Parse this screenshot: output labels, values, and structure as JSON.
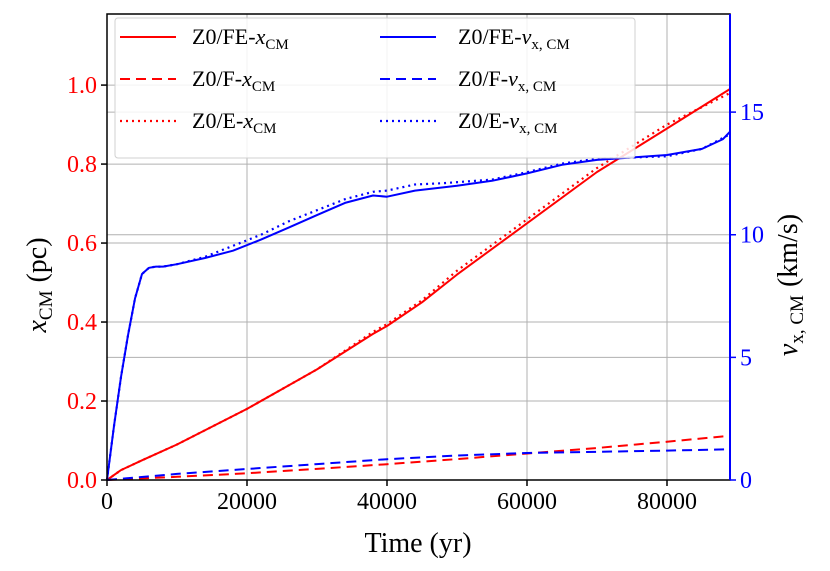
{
  "chart_data": {
    "type": "line",
    "xlabel": "Time (yr)",
    "ylabel_left_main": "x",
    "ylabel_left_sub": "CM",
    "ylabel_left_unit": "(pc)",
    "ylabel_right_main": "v",
    "ylabel_right_sub": "x, CM",
    "ylabel_right_unit": "(km/s)",
    "xlim": [
      0,
      89000
    ],
    "ylim_left": [
      0,
      1.18
    ],
    "ylim_right": [
      0,
      19.0
    ],
    "x_ticks": [
      0,
      20000,
      40000,
      60000,
      80000
    ],
    "x_tick_labels": [
      "0",
      "20000",
      "40000",
      "60000",
      "80000"
    ],
    "yleft_ticks": [
      0.0,
      0.2,
      0.4,
      0.6,
      0.8,
      1.0
    ],
    "yleft_tick_labels": [
      "0.0",
      "0.2",
      "0.4",
      "0.6",
      "0.8",
      "1.0"
    ],
    "yright_ticks": [
      0,
      5,
      10,
      15
    ],
    "yright_tick_labels": [
      "0",
      "5",
      "10",
      "15"
    ],
    "grid": true,
    "legend_position": "top",
    "colors": {
      "x_axis_series": "#ff0000",
      "v_axis_series": "#0000ff",
      "frame": "#000000"
    },
    "series": [
      {
        "name": "Z0/FE-x",
        "name_sub": "CM",
        "axis": "left",
        "color": "#ff0000",
        "style": "solid",
        "x": [
          0,
          2000,
          5000,
          10000,
          20000,
          30000,
          38000,
          40000,
          45000,
          50000,
          60000,
          70000,
          80000,
          89000
        ],
        "y": [
          0,
          0.025,
          0.05,
          0.09,
          0.18,
          0.28,
          0.37,
          0.39,
          0.45,
          0.52,
          0.65,
          0.78,
          0.89,
          0.99
        ]
      },
      {
        "name": "Z0/F-x",
        "name_sub": "CM",
        "axis": "left",
        "color": "#ff0000",
        "style": "dashed",
        "x": [
          0,
          10000,
          20000,
          30000,
          40000,
          50000,
          60000,
          70000,
          80000,
          89000
        ],
        "y": [
          0,
          0.008,
          0.017,
          0.028,
          0.04,
          0.053,
          0.067,
          0.081,
          0.097,
          0.112
        ]
      },
      {
        "name": "Z0/E-x",
        "name_sub": "CM",
        "axis": "left",
        "color": "#ff0000",
        "style": "dotted",
        "x": [
          0,
          2000,
          5000,
          10000,
          20000,
          30000,
          38000,
          40000,
          45000,
          50000,
          60000,
          70000,
          80000,
          89000
        ],
        "y": [
          0,
          0.025,
          0.05,
          0.09,
          0.18,
          0.28,
          0.375,
          0.395,
          0.455,
          0.53,
          0.66,
          0.79,
          0.9,
          0.98
        ]
      },
      {
        "name": "Z0/FE-v",
        "name_sub": "x, CM",
        "axis": "right",
        "color": "#0000ff",
        "style": "solid",
        "x": [
          0,
          1000,
          2000,
          3000,
          4000,
          5000,
          6000,
          7000,
          8000,
          10000,
          14000,
          18000,
          22000,
          26000,
          30000,
          34000,
          38000,
          40000,
          44000,
          50000,
          55000,
          60000,
          65000,
          70000,
          75000,
          80000,
          85000,
          88000,
          89000
        ],
        "y": [
          0,
          2.2,
          4.2,
          5.9,
          7.4,
          8.4,
          8.65,
          8.7,
          8.7,
          8.8,
          9.05,
          9.35,
          9.8,
          10.3,
          10.8,
          11.3,
          11.6,
          11.55,
          11.8,
          12.0,
          12.2,
          12.5,
          12.85,
          13.05,
          13.15,
          13.25,
          13.5,
          13.9,
          14.2
        ]
      },
      {
        "name": "Z0/F-v",
        "name_sub": "x, CM",
        "axis": "right",
        "color": "#0000ff",
        "style": "dashed",
        "x": [
          0,
          10000,
          20000,
          30000,
          40000,
          50000,
          60000,
          70000,
          80000,
          89000
        ],
        "y": [
          0,
          0.25,
          0.45,
          0.65,
          0.85,
          1.0,
          1.1,
          1.15,
          1.2,
          1.25
        ]
      },
      {
        "name": "Z0/E-v",
        "name_sub": "x, CM",
        "axis": "right",
        "color": "#0000ff",
        "style": "dotted",
        "x": [
          0,
          1000,
          2000,
          3000,
          4000,
          5000,
          6000,
          7000,
          8000,
          10000,
          14000,
          18000,
          22000,
          26000,
          30000,
          34000,
          38000,
          40000,
          44000,
          48000,
          55000,
          60000,
          65000,
          70000,
          75000,
          80000,
          85000,
          89000
        ],
        "y": [
          0,
          2.2,
          4.2,
          5.9,
          7.4,
          8.4,
          8.65,
          8.7,
          8.7,
          8.8,
          9.1,
          9.55,
          10.0,
          10.55,
          11.0,
          11.45,
          11.75,
          11.8,
          12.05,
          12.1,
          12.25,
          12.55,
          12.9,
          13.1,
          13.15,
          13.2,
          13.5,
          14.1
        ]
      }
    ]
  }
}
